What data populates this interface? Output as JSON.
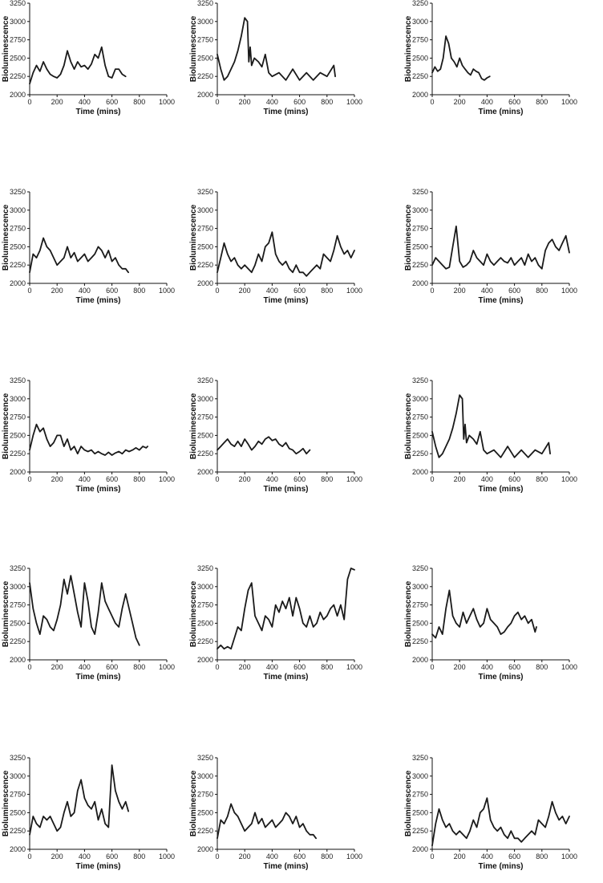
{
  "chart_data": [
    {
      "type": "line",
      "xlabel": "Time (mins)",
      "ylabel": "Bioluminescence",
      "xlim": [
        0,
        1000
      ],
      "ylim": [
        2000,
        3250
      ],
      "x": [
        0,
        25,
        50,
        75,
        100,
        125,
        150,
        175,
        200,
        225,
        250,
        275,
        300,
        325,
        350,
        375,
        400,
        425,
        450,
        475,
        500,
        525,
        550,
        575,
        600,
        625,
        650,
        675,
        700
      ],
      "y": [
        2150,
        2300,
        2400,
        2320,
        2450,
        2350,
        2280,
        2250,
        2230,
        2280,
        2400,
        2600,
        2450,
        2350,
        2450,
        2380,
        2400,
        2350,
        2420,
        2550,
        2500,
        2650,
        2400,
        2250,
        2230,
        2350,
        2350,
        2280,
        2250
      ]
    },
    {
      "type": "line",
      "xlabel": "Time (mins)",
      "ylabel": "Bioluminescence",
      "xlim": [
        0,
        1000
      ],
      "ylim": [
        2000,
        3250
      ],
      "x": [
        0,
        25,
        50,
        75,
        100,
        125,
        150,
        175,
        200,
        220,
        230,
        240,
        250,
        270,
        300,
        325,
        350,
        375,
        400,
        450,
        500,
        550,
        600,
        650,
        700,
        750,
        800,
        850,
        860
      ],
      "y": [
        2550,
        2350,
        2200,
        2250,
        2350,
        2450,
        2600,
        2800,
        3050,
        3000,
        2450,
        2650,
        2400,
        2500,
        2450,
        2380,
        2550,
        2300,
        2250,
        2300,
        2200,
        2350,
        2200,
        2300,
        2200,
        2300,
        2250,
        2400,
        2250
      ]
    },
    {
      "type": "line",
      "xlabel": "Time (mins)",
      "ylabel": "Bioluminescence",
      "xlim": [
        0,
        1000
      ],
      "ylim": [
        2000,
        3250
      ],
      "x": [
        0,
        20,
        40,
        60,
        80,
        100,
        120,
        140,
        160,
        180,
        200,
        220,
        240,
        260,
        280,
        300,
        320,
        340,
        360,
        380,
        400,
        420
      ],
      "y": [
        2300,
        2380,
        2320,
        2350,
        2500,
        2800,
        2700,
        2500,
        2450,
        2380,
        2500,
        2400,
        2350,
        2300,
        2270,
        2350,
        2320,
        2300,
        2220,
        2200,
        2230,
        2250
      ]
    },
    {
      "type": "line",
      "xlabel": "Time (mins)",
      "ylabel": "Bioluminescence",
      "xlim": [
        0,
        1000
      ],
      "ylim": [
        2000,
        3250
      ],
      "x": [
        0,
        25,
        50,
        75,
        100,
        125,
        150,
        175,
        200,
        225,
        250,
        275,
        300,
        325,
        350,
        375,
        400,
        425,
        450,
        475,
        500,
        525,
        550,
        575,
        600,
        625,
        650,
        675,
        700,
        720
      ],
      "y": [
        2150,
        2400,
        2350,
        2450,
        2620,
        2500,
        2450,
        2350,
        2250,
        2300,
        2350,
        2500,
        2350,
        2420,
        2300,
        2350,
        2400,
        2300,
        2350,
        2400,
        2500,
        2450,
        2350,
        2450,
        2300,
        2350,
        2250,
        2200,
        2200,
        2150
      ]
    },
    {
      "type": "line",
      "xlabel": "Time (mins)",
      "ylabel": "Bioluminescence",
      "xlim": [
        0,
        1000
      ],
      "ylim": [
        2000,
        3250
      ],
      "x": [
        0,
        25,
        50,
        75,
        100,
        125,
        150,
        175,
        200,
        225,
        250,
        275,
        300,
        325,
        350,
        375,
        400,
        425,
        450,
        475,
        500,
        525,
        550,
        575,
        600,
        625,
        650,
        675,
        700,
        725,
        750,
        775,
        800,
        825,
        850,
        875,
        900,
        925,
        950,
        975,
        1000
      ],
      "y": [
        2150,
        2350,
        2550,
        2400,
        2300,
        2350,
        2250,
        2200,
        2250,
        2200,
        2150,
        2250,
        2400,
        2300,
        2500,
        2550,
        2700,
        2400,
        2300,
        2250,
        2300,
        2200,
        2150,
        2250,
        2150,
        2150,
        2100,
        2150,
        2200,
        2250,
        2200,
        2400,
        2350,
        2300,
        2450,
        2650,
        2500,
        2400,
        2450,
        2350,
        2450
      ]
    },
    {
      "type": "line",
      "xlabel": "Time (mins)",
      "ylabel": "Bioluminescence",
      "xlim": [
        0,
        1000
      ],
      "ylim": [
        2000,
        3250
      ],
      "x": [
        0,
        25,
        50,
        75,
        100,
        125,
        150,
        175,
        200,
        225,
        250,
        275,
        300,
        325,
        350,
        375,
        400,
        425,
        450,
        475,
        500,
        525,
        550,
        575,
        600,
        625,
        650,
        675,
        700,
        725,
        750,
        775,
        800,
        825,
        850,
        875,
        900,
        925,
        950,
        975,
        1000
      ],
      "y": [
        2250,
        2350,
        2300,
        2250,
        2200,
        2220,
        2500,
        2780,
        2300,
        2220,
        2250,
        2300,
        2450,
        2350,
        2300,
        2250,
        2400,
        2300,
        2250,
        2300,
        2350,
        2300,
        2280,
        2350,
        2250,
        2300,
        2350,
        2250,
        2400,
        2300,
        2350,
        2250,
        2200,
        2450,
        2550,
        2600,
        2500,
        2450,
        2550,
        2650,
        2420
      ]
    },
    {
      "type": "line",
      "xlabel": "Time (mins)",
      "ylabel": "Bioluminescence",
      "xlim": [
        0,
        1000
      ],
      "ylim": [
        2000,
        3250
      ],
      "x": [
        0,
        25,
        50,
        75,
        100,
        125,
        150,
        175,
        200,
        225,
        250,
        275,
        300,
        325,
        350,
        375,
        400,
        425,
        450,
        475,
        500,
        525,
        550,
        575,
        600,
        625,
        650,
        675,
        700,
        725,
        750,
        775,
        800,
        825,
        850,
        860
      ],
      "y": [
        2300,
        2500,
        2650,
        2550,
        2600,
        2450,
        2350,
        2400,
        2500,
        2500,
        2350,
        2450,
        2300,
        2350,
        2250,
        2350,
        2300,
        2280,
        2300,
        2250,
        2280,
        2250,
        2230,
        2270,
        2230,
        2260,
        2280,
        2250,
        2300,
        2280,
        2300,
        2330,
        2300,
        2350,
        2330,
        2350
      ]
    },
    {
      "type": "line",
      "xlabel": "Time (mins)",
      "ylabel": "Bioluminescence",
      "xlim": [
        0,
        1000
      ],
      "ylim": [
        2000,
        3250
      ],
      "x": [
        0,
        25,
        50,
        75,
        100,
        125,
        150,
        175,
        200,
        225,
        250,
        275,
        300,
        325,
        350,
        375,
        400,
        425,
        450,
        475,
        500,
        525,
        550,
        575,
        600,
        625,
        650,
        675
      ],
      "y": [
        2300,
        2350,
        2400,
        2450,
        2380,
        2350,
        2420,
        2350,
        2450,
        2380,
        2300,
        2350,
        2420,
        2380,
        2450,
        2480,
        2430,
        2450,
        2380,
        2350,
        2400,
        2320,
        2300,
        2250,
        2280,
        2320,
        2250,
        2300
      ]
    },
    {
      "type": "line",
      "xlabel": "Time (mins)",
      "ylabel": "Bioluminescence",
      "xlim": [
        0,
        1000
      ],
      "ylim": [
        2000,
        3250
      ],
      "x": [
        0,
        25,
        50,
        75,
        100,
        125,
        150,
        175,
        200,
        220,
        230,
        240,
        250,
        270,
        300,
        325,
        350,
        375,
        400,
        450,
        500,
        550,
        600,
        650,
        700,
        750,
        800,
        850,
        860
      ],
      "y": [
        2550,
        2350,
        2200,
        2250,
        2350,
        2450,
        2600,
        2800,
        3050,
        3000,
        2450,
        2650,
        2400,
        2500,
        2450,
        2380,
        2550,
        2300,
        2250,
        2300,
        2200,
        2350,
        2200,
        2300,
        2200,
        2300,
        2250,
        2400,
        2250
      ]
    },
    {
      "type": "line",
      "xlabel": "Time (mins)",
      "ylabel": "Bioluminescence",
      "xlim": [
        0,
        1000
      ],
      "ylim": [
        2000,
        3250
      ],
      "x": [
        0,
        25,
        50,
        75,
        100,
        125,
        150,
        175,
        200,
        225,
        250,
        275,
        300,
        325,
        350,
        375,
        400,
        425,
        450,
        475,
        500,
        525,
        550,
        575,
        600,
        625,
        650,
        675,
        700,
        725,
        750,
        775,
        800
      ],
      "y": [
        3050,
        2700,
        2500,
        2350,
        2600,
        2550,
        2450,
        2400,
        2550,
        2750,
        3100,
        2900,
        3150,
        2900,
        2650,
        2450,
        3050,
        2800,
        2450,
        2350,
        2650,
        3050,
        2800,
        2700,
        2600,
        2500,
        2450,
        2700,
        2900,
        2700,
        2500,
        2300,
        2200
      ]
    },
    {
      "type": "line",
      "xlabel": "Time (mins)",
      "ylabel": "Bioluminescence",
      "xlim": [
        0,
        1000
      ],
      "ylim": [
        2000,
        3250
      ],
      "x": [
        0,
        25,
        50,
        75,
        100,
        125,
        150,
        175,
        200,
        225,
        250,
        275,
        300,
        325,
        350,
        375,
        400,
        425,
        450,
        475,
        500,
        525,
        550,
        575,
        600,
        625,
        650,
        675,
        700,
        725,
        750,
        775,
        800,
        825,
        850,
        875,
        900,
        925,
        950,
        975,
        1000
      ],
      "y": [
        2150,
        2200,
        2150,
        2180,
        2150,
        2300,
        2450,
        2400,
        2700,
        2950,
        3050,
        2600,
        2500,
        2400,
        2600,
        2550,
        2450,
        2750,
        2650,
        2800,
        2700,
        2850,
        2600,
        2850,
        2700,
        2500,
        2450,
        2600,
        2450,
        2500,
        2650,
        2550,
        2600,
        2700,
        2750,
        2600,
        2750,
        2550,
        3100,
        3250,
        3230
      ]
    },
    {
      "type": "line",
      "xlabel": "Time (mins)",
      "ylabel": "Bioluminescence",
      "xlim": [
        0,
        1000
      ],
      "ylim": [
        2000,
        3250
      ],
      "x": [
        0,
        25,
        50,
        75,
        100,
        125,
        150,
        175,
        200,
        225,
        250,
        275,
        300,
        325,
        350,
        375,
        400,
        425,
        450,
        475,
        500,
        525,
        550,
        575,
        600,
        625,
        650,
        675,
        700,
        725,
        750,
        760
      ],
      "y": [
        2350,
        2300,
        2450,
        2350,
        2700,
        2950,
        2600,
        2500,
        2450,
        2650,
        2500,
        2600,
        2700,
        2550,
        2450,
        2500,
        2700,
        2550,
        2500,
        2450,
        2350,
        2380,
        2450,
        2500,
        2600,
        2650,
        2550,
        2600,
        2500,
        2550,
        2380,
        2450
      ]
    },
    {
      "type": "line",
      "xlabel": "Time (mins)",
      "ylabel": "Bioluminescence",
      "xlim": [
        0,
        1000
      ],
      "ylim": [
        2000,
        3250
      ],
      "x": [
        0,
        25,
        50,
        75,
        100,
        125,
        150,
        175,
        200,
        225,
        250,
        275,
        300,
        325,
        350,
        375,
        400,
        425,
        450,
        475,
        500,
        525,
        550,
        575,
        600,
        625,
        650,
        675,
        700,
        720
      ],
      "y": [
        2200,
        2450,
        2350,
        2300,
        2450,
        2400,
        2450,
        2350,
        2250,
        2300,
        2500,
        2650,
        2450,
        2500,
        2800,
        2950,
        2700,
        2600,
        2550,
        2650,
        2400,
        2550,
        2350,
        2300,
        3150,
        2800,
        2650,
        2550,
        2650,
        2520
      ]
    },
    {
      "type": "line",
      "xlabel": "Time (mins)",
      "ylabel": "Bioluminescence",
      "xlim": [
        0,
        1000
      ],
      "ylim": [
        2000,
        3250
      ],
      "x": [
        0,
        25,
        50,
        75,
        100,
        125,
        150,
        175,
        200,
        225,
        250,
        275,
        300,
        325,
        350,
        375,
        400,
        425,
        450,
        475,
        500,
        525,
        550,
        575,
        600,
        625,
        650,
        675,
        700,
        720
      ],
      "y": [
        2150,
        2400,
        2350,
        2450,
        2620,
        2500,
        2450,
        2350,
        2250,
        2300,
        2350,
        2500,
        2350,
        2420,
        2300,
        2350,
        2400,
        2300,
        2350,
        2400,
        2500,
        2450,
        2350,
        2450,
        2300,
        2350,
        2250,
        2200,
        2200,
        2150
      ]
    },
    {
      "type": "line",
      "xlabel": "Time (mins)",
      "ylabel": "Bioluminescence",
      "xlim": [
        0,
        1000
      ],
      "ylim": [
        2000,
        3250
      ],
      "x": [
        0,
        25,
        50,
        75,
        100,
        125,
        150,
        175,
        200,
        225,
        250,
        275,
        300,
        325,
        350,
        375,
        400,
        425,
        450,
        475,
        500,
        525,
        550,
        575,
        600,
        625,
        650,
        675,
        700,
        725,
        750,
        775,
        800,
        825,
        850,
        875,
        900,
        925,
        950,
        975,
        1000
      ],
      "y": [
        2050,
        2350,
        2550,
        2400,
        2300,
        2350,
        2250,
        2200,
        2250,
        2200,
        2150,
        2250,
        2400,
        2300,
        2500,
        2550,
        2700,
        2400,
        2300,
        2250,
        2300,
        2200,
        2150,
        2250,
        2150,
        2150,
        2100,
        2150,
        2200,
        2250,
        2200,
        2400,
        2350,
        2300,
        2450,
        2650,
        2500,
        2400,
        2450,
        2350,
        2450
      ]
    }
  ]
}
